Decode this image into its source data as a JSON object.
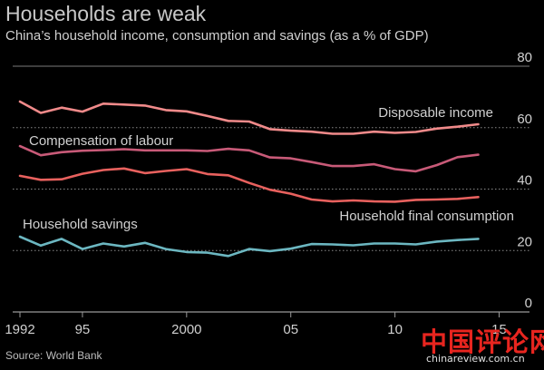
{
  "header": {
    "title": "Households are weak",
    "subtitle": "China’s household income, consumption and savings (as a % of GDP)"
  },
  "source": "Source: World Bank",
  "watermark": {
    "chars": "中国评论网",
    "url": "chinareview.com.cn"
  },
  "colors": {
    "background": "#000000",
    "salmon": "#f08a8a",
    "rose": "#c85a78",
    "red": "#e8615e",
    "teal": "#6cb7c1",
    "axis": "#9a9a9a",
    "text": "#d0d0d0"
  },
  "chart_data": {
    "type": "line",
    "x_tick_labels": [
      "1992",
      "95",
      "2000",
      "05",
      "10",
      "15"
    ],
    "x_tick_values": [
      1992,
      1995,
      2000,
      2005,
      2010,
      2015
    ],
    "xlim": [
      1992,
      2015.5
    ],
    "ylim": [
      0,
      80
    ],
    "y_ticks": [
      0,
      20,
      40,
      60,
      80
    ],
    "y_axis_side": "right",
    "grid": "dotted horizontal",
    "x": [
      1992,
      1993,
      1994,
      1995,
      1996,
      1997,
      1998,
      1999,
      2000,
      2001,
      2002,
      2003,
      2004,
      2005,
      2006,
      2007,
      2008,
      2009,
      2010,
      2011,
      2012,
      2013,
      2014
    ],
    "series": [
      {
        "name": "Disposable income",
        "color": "#f08a8a",
        "values": [
          68.5,
          64.8,
          66.5,
          65.2,
          67.8,
          67.5,
          67.2,
          65.7,
          65.3,
          63.8,
          62.2,
          62.0,
          59.5,
          59.0,
          58.7,
          58.0,
          58.0,
          58.7,
          58.3,
          58.6,
          59.7,
          60.3,
          61.1
        ]
      },
      {
        "name": "Compensation of labour",
        "color": "#c85a78",
        "values": [
          54.0,
          51.0,
          52.0,
          52.5,
          52.7,
          53.0,
          52.6,
          52.6,
          52.6,
          52.4,
          53.1,
          52.6,
          50.3,
          50.0,
          48.8,
          47.5,
          47.5,
          48.1,
          46.5,
          45.8,
          47.8,
          50.4,
          51.2
        ]
      },
      {
        "name": "Household final consumption",
        "color": "#e8615e",
        "values": [
          44.3,
          43.0,
          43.2,
          45.0,
          46.2,
          46.7,
          45.2,
          45.9,
          46.5,
          44.9,
          44.5,
          42.0,
          39.8,
          38.5,
          36.6,
          36.0,
          36.3,
          36.0,
          35.9,
          36.5,
          36.6,
          36.8,
          37.4
        ]
      },
      {
        "name": "Household savings",
        "color": "#6cb7c1",
        "values": [
          24.5,
          21.6,
          23.8,
          20.5,
          22.3,
          21.3,
          22.5,
          20.5,
          19.5,
          19.3,
          18.2,
          20.5,
          19.8,
          20.6,
          22.1,
          22.0,
          21.7,
          22.3,
          22.3,
          22.0,
          22.9,
          23.4,
          23.8
        ]
      }
    ],
    "annotations": [
      {
        "text": "Disposable income",
        "series": 0
      },
      {
        "text": "Compensation of labour",
        "series": 1
      },
      {
        "text": "Household final consumption",
        "series": 2
      },
      {
        "text": "Household savings",
        "series": 3
      }
    ]
  }
}
